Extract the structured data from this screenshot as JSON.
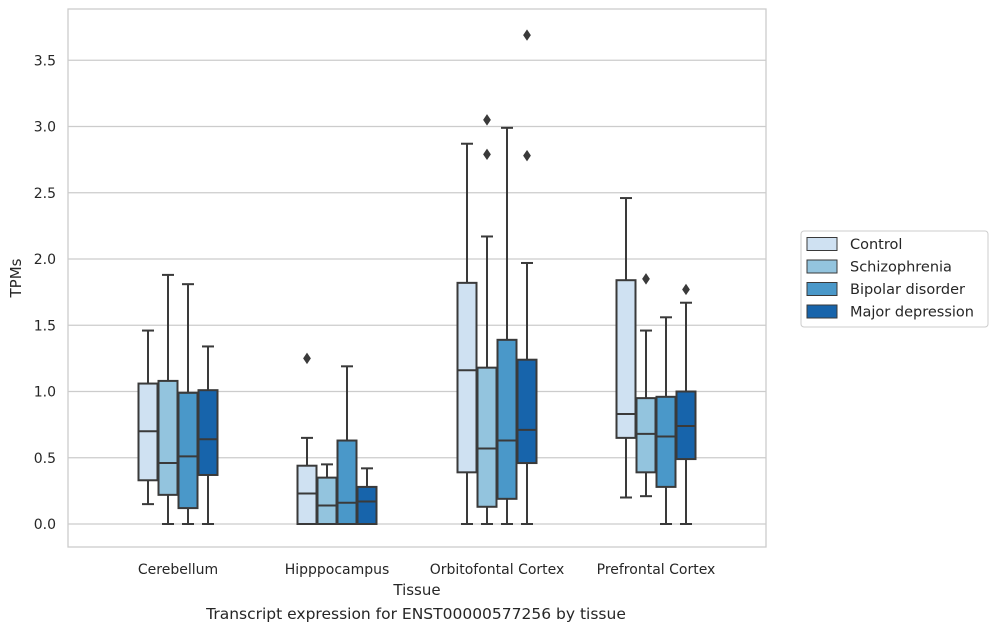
{
  "caption": "Transcript expression for ENST00000577256 by tissue",
  "colors": {
    "Control": "#cfe1f2",
    "Schizophrenia": "#93c4de",
    "Bipolar disorder": "#4a98c9",
    "Major depression": "#1764ab",
    "edge": "#3a3a3a",
    "grid": "#cccccc",
    "frame": "#cccccc"
  },
  "chart_data": {
    "type": "box",
    "xlabel": "Tissue",
    "ylabel": "TPMs",
    "ylim": [
      -0.18,
      3.88
    ],
    "yticks": [
      0.0,
      0.5,
      1.0,
      1.5,
      2.0,
      2.5,
      3.0,
      3.5
    ],
    "ytick_labels": [
      "0.0",
      "0.5",
      "1.0",
      "1.5",
      "2.0",
      "2.5",
      "3.0",
      "3.5"
    ],
    "grid": "horizontal",
    "legend_position": "right",
    "categories": [
      "Cerebellum",
      "Hipppocampus",
      "Orbitofontal Cortex",
      "Prefrontal Cortex"
    ],
    "series": [
      {
        "name": "Control",
        "boxes": [
          {
            "min": 0.15,
            "q1": 0.33,
            "median": 0.7,
            "q3": 1.06,
            "max": 1.46,
            "outliers": []
          },
          {
            "min": 0.0,
            "q1": 0.0,
            "median": 0.23,
            "q3": 0.44,
            "max": 0.65,
            "outliers": [
              1.25
            ]
          },
          {
            "min": 0.0,
            "q1": 0.39,
            "median": 1.16,
            "q3": 1.82,
            "max": 2.87,
            "outliers": []
          },
          {
            "min": 0.2,
            "q1": 0.65,
            "median": 0.83,
            "q3": 1.84,
            "max": 2.46,
            "outliers": []
          }
        ]
      },
      {
        "name": "Schizophrenia",
        "boxes": [
          {
            "min": 0.0,
            "q1": 0.22,
            "median": 0.46,
            "q3": 1.08,
            "max": 1.88,
            "outliers": []
          },
          {
            "min": 0.0,
            "q1": 0.0,
            "median": 0.14,
            "q3": 0.35,
            "max": 0.45,
            "outliers": []
          },
          {
            "min": 0.0,
            "q1": 0.13,
            "median": 0.57,
            "q3": 1.18,
            "max": 2.17,
            "outliers": [
              2.79,
              3.05
            ]
          },
          {
            "min": 0.21,
            "q1": 0.39,
            "median": 0.68,
            "q3": 0.95,
            "max": 1.46,
            "outliers": [
              1.85
            ]
          }
        ]
      },
      {
        "name": "Bipolar disorder",
        "boxes": [
          {
            "min": 0.0,
            "q1": 0.12,
            "median": 0.51,
            "q3": 0.99,
            "max": 1.81,
            "outliers": []
          },
          {
            "min": 0.0,
            "q1": 0.0,
            "median": 0.16,
            "q3": 0.63,
            "max": 1.19,
            "outliers": []
          },
          {
            "min": 0.0,
            "q1": 0.19,
            "median": 0.63,
            "q3": 1.39,
            "max": 2.99,
            "outliers": []
          },
          {
            "min": 0.0,
            "q1": 0.28,
            "median": 0.66,
            "q3": 0.96,
            "max": 1.56,
            "outliers": []
          }
        ]
      },
      {
        "name": "Major depression",
        "boxes": [
          {
            "min": 0.0,
            "q1": 0.37,
            "median": 0.64,
            "q3": 1.01,
            "max": 1.34,
            "outliers": []
          },
          {
            "min": 0.0,
            "q1": 0.0,
            "median": 0.17,
            "q3": 0.28,
            "max": 0.42,
            "outliers": []
          },
          {
            "min": 0.0,
            "q1": 0.46,
            "median": 0.71,
            "q3": 1.24,
            "max": 1.97,
            "outliers": [
              2.78,
              3.69
            ]
          },
          {
            "min": 0.0,
            "q1": 0.49,
            "median": 0.74,
            "q3": 1.0,
            "max": 1.67,
            "outliers": [
              1.77
            ]
          }
        ]
      }
    ]
  }
}
